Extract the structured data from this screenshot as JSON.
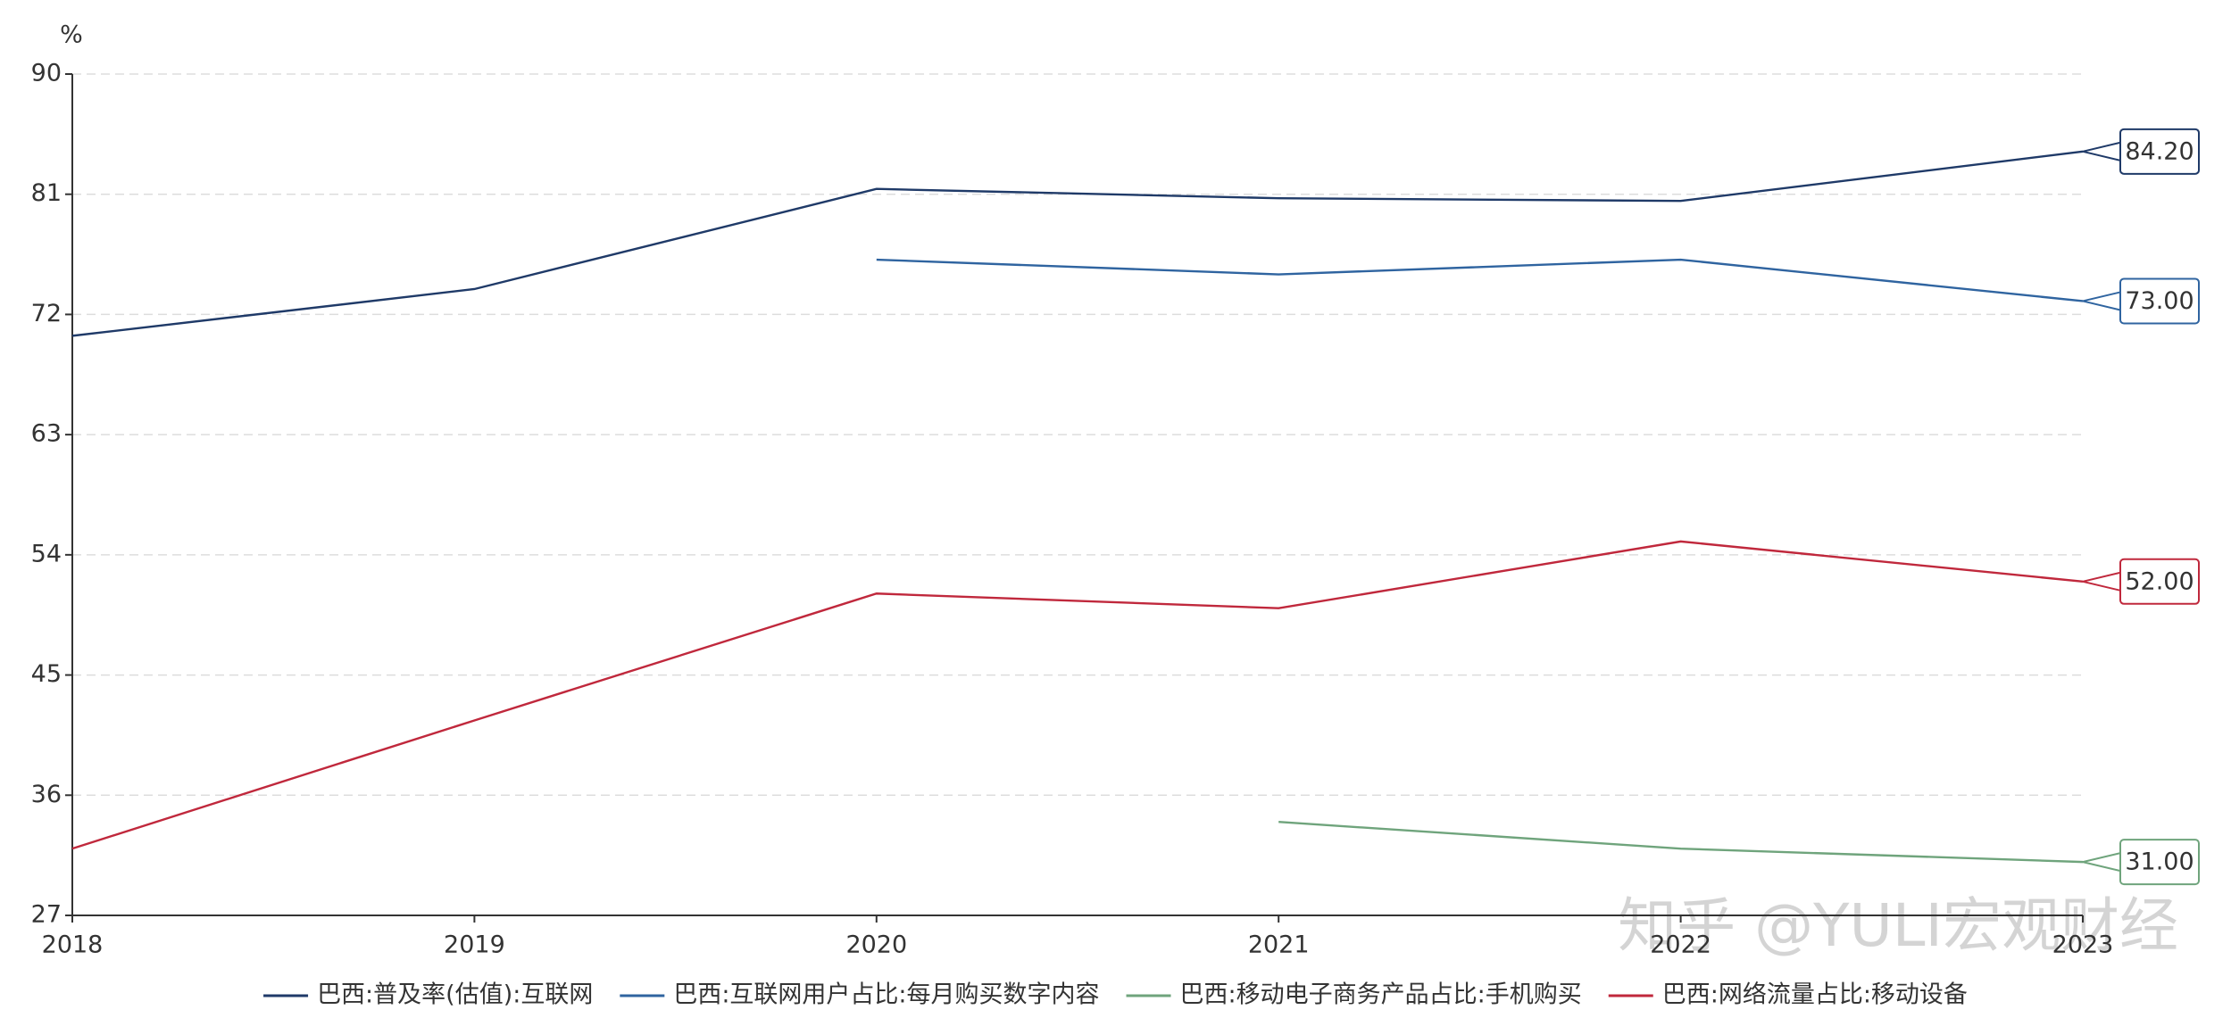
{
  "chart_data": {
    "type": "line",
    "y_label": "%",
    "categories": [
      "2018",
      "2019",
      "2020",
      "2021",
      "2022",
      "2023"
    ],
    "series": [
      {
        "name": "巴西:普及率(估值):互联网",
        "color": "#1f3a68",
        "values": [
          70.4,
          73.9,
          81.4,
          80.7,
          80.5,
          84.2
        ],
        "value_labels": [
          null,
          null,
          null,
          null,
          null,
          "84.20"
        ]
      },
      {
        "name": "巴西:互联网用户占比:每月购买数字内容",
        "color": "#2f64a0",
        "values": [
          null,
          null,
          76.1,
          75.0,
          76.1,
          73
        ],
        "value_labels": [
          null,
          null,
          null,
          null,
          null,
          "73.00"
        ]
      },
      {
        "name": "巴西:移动电子商务产品占比:手机购买",
        "color": "#6fa47c",
        "values": [
          null,
          null,
          null,
          34.0,
          32.0,
          31
        ],
        "value_labels": [
          null,
          null,
          null,
          null,
          null,
          "31.00"
        ]
      },
      {
        "name": "巴西:网络流量占比:移动设备",
        "color": "#c0283c",
        "values": [
          32.0,
          41.6,
          51.1,
          50.0,
          55.0,
          52
        ],
        "value_labels": [
          null,
          null,
          null,
          null,
          null,
          "52.00"
        ]
      }
    ],
    "ylim": [
      27,
      90
    ],
    "yticks": [
      27,
      36,
      45,
      54,
      63,
      72,
      81,
      90
    ],
    "grid": true,
    "watermark": "知乎 @YULI宏观财经"
  }
}
